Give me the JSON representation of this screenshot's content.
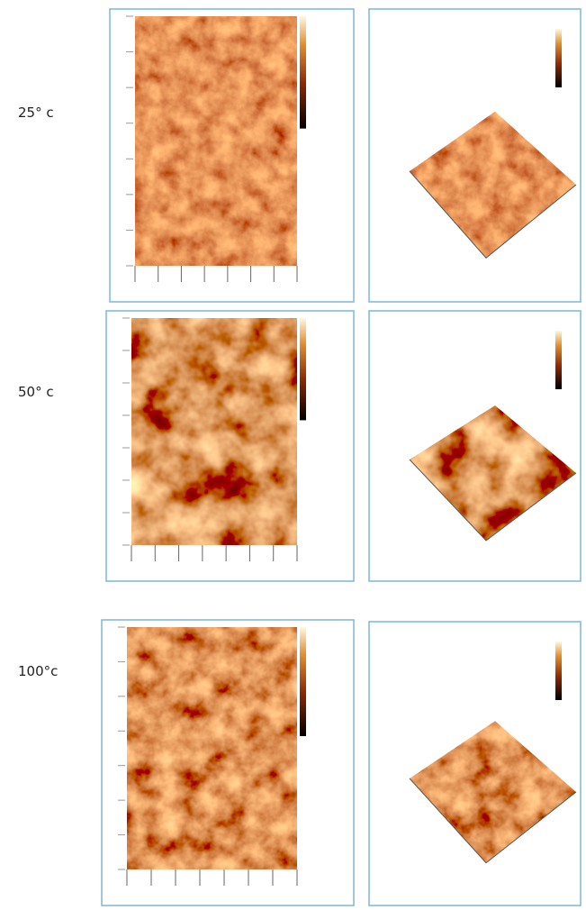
{
  "rows": [
    {
      "label": "25° c"
    },
    {
      "label": "50° c"
    },
    {
      "label": "100°c"
    }
  ]
}
